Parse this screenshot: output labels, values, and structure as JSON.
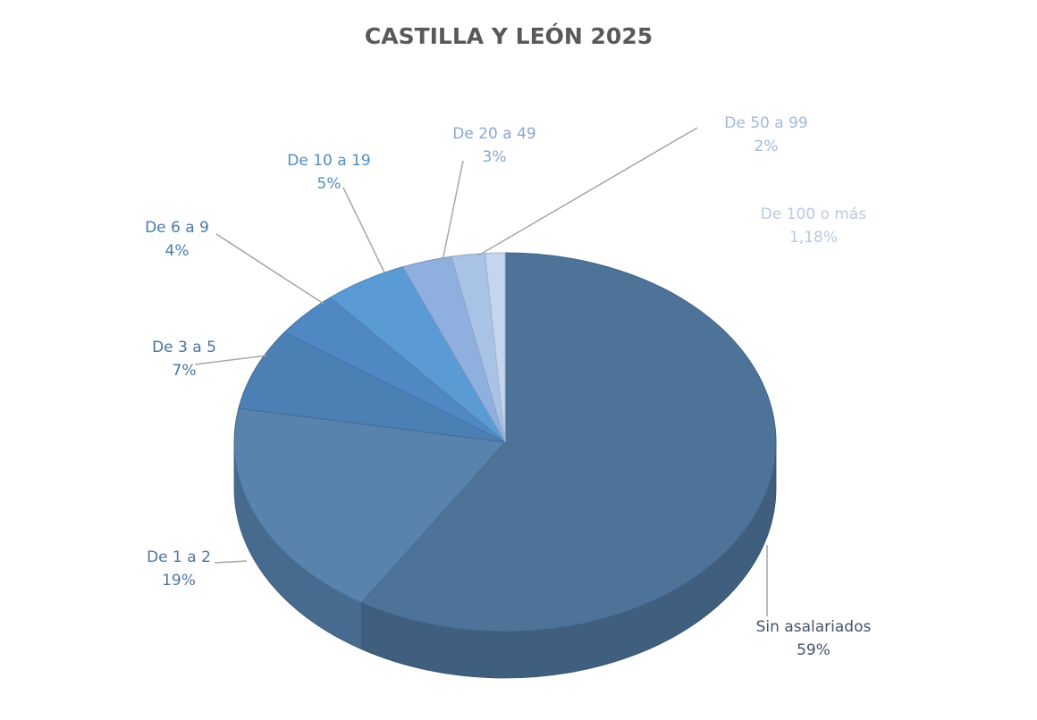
{
  "chart_data": {
    "type": "pie",
    "title": "CASTILLA Y LEÓN 2025",
    "categories": [
      "Sin asalariados",
      "De 1 a 2",
      "De 3 a 5",
      "De 6 a 9",
      "De 10 a 19",
      "De 20 a 49",
      "De 50 a 99",
      "De 100 o más"
    ],
    "values": [
      59,
      19,
      7,
      4,
      5,
      3,
      2,
      1.18
    ],
    "value_labels": [
      "59%",
      "19%",
      "7%",
      "4%",
      "5%",
      "3%",
      "2%",
      "1,18%"
    ],
    "colors": [
      "#4e7399",
      "#5783ad",
      "#4c7fb3",
      "#4f88c2",
      "#5b9bd5",
      "#8fb0de",
      "#a9c3e6",
      "#c3d5ef"
    ]
  }
}
